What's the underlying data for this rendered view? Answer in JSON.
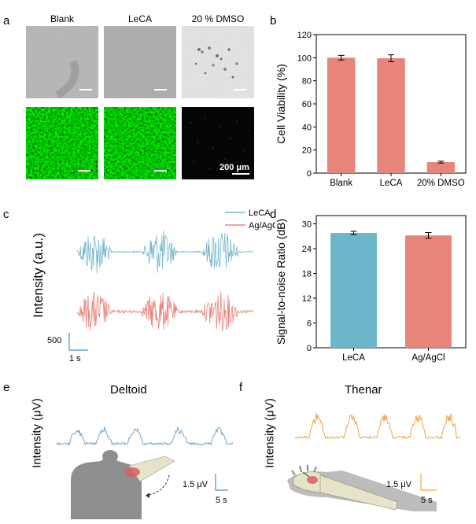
{
  "panels": {
    "a": {
      "label": "a",
      "titles": [
        "Blank",
        "LeCA",
        "20 % DMSO"
      ],
      "scale_text": "200 μm"
    },
    "b": {
      "label": "b"
    },
    "c": {
      "label": "c",
      "ylabel": "Intensity (a.u.)",
      "legend": [
        "LeCA",
        "Ag/AgCl"
      ],
      "scale_y": "500",
      "scale_x": "1 s"
    },
    "d": {
      "label": "d"
    },
    "e": {
      "label": "e",
      "title": "Deltoid",
      "ylabel": "Intensity (μV)",
      "scale_y": "1.5 μV",
      "scale_x": "5 s"
    },
    "f": {
      "label": "f",
      "title": "Thenar",
      "ylabel": "Intensity (μV)",
      "scale_y": "1.5 μV",
      "scale_x": "5 s"
    }
  },
  "colors": {
    "bar_salmon": "#e8857a",
    "bar_teal": "#6bb7c9",
    "lecA_signal": "#7ab8cc",
    "agagcl_signal": "#e8857a",
    "deltoid_signal": "#7aa6c8",
    "thenar_signal": "#f0a64a",
    "fluorescence": "#2fbf2f"
  },
  "chart_data": [
    {
      "type": "bar",
      "id": "b",
      "categories": [
        "Blank",
        "LeCA",
        "20% DMSO"
      ],
      "values": [
        100,
        99.5,
        9.5
      ],
      "errors": [
        2,
        3,
        0.8
      ],
      "ylabel": "Cell Viability (%)",
      "ylim": [
        0,
        120
      ],
      "yticks": [
        0,
        20,
        40,
        60,
        80,
        100,
        120
      ],
      "color": "#e8857a"
    },
    {
      "type": "bar",
      "id": "d",
      "categories": [
        "LeCA",
        "Ag/AgCl"
      ],
      "values": [
        27.8,
        27.2
      ],
      "errors": [
        0.4,
        0.7
      ],
      "ylabel": "Signal-to-noise Ratio (dB)",
      "ylim": [
        0,
        32
      ],
      "yticks": [
        0,
        6,
        12,
        18,
        24,
        30
      ],
      "colors": [
        "#6bb7c9",
        "#e8857a"
      ]
    }
  ]
}
